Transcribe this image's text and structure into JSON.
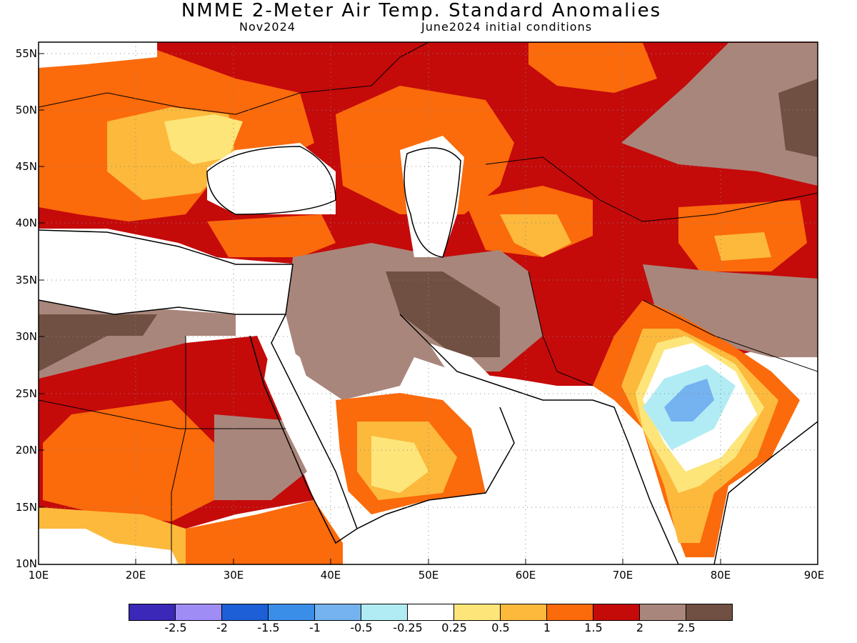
{
  "title": "NMME 2-Meter Air Temp. Standard Anomalies",
  "valid_month": "Nov2024",
  "initial_conditions": "June2024 initial conditions",
  "colors": {
    "land_outline": "#000000",
    "grid": "#888888"
  },
  "map": {
    "lat_labels": [
      "55N",
      "50N",
      "45N",
      "40N",
      "35N",
      "30N",
      "25N",
      "20N",
      "15N",
      "10N"
    ],
    "lon_labels": [
      "10E",
      "20E",
      "30E",
      "40E",
      "50E",
      "60E",
      "70E",
      "80E",
      "90E"
    ],
    "lat_range": [
      10,
      56
    ],
    "lon_range": [
      10,
      90
    ]
  },
  "colorbar": {
    "colors": [
      "#3b27b8",
      "#a08cf5",
      "#1d5fd7",
      "#3b8ee8",
      "#74b2f0",
      "#b1ecf4",
      "#ffffff",
      "#fde57a",
      "#fcb93c",
      "#fb6a0b",
      "#c50a0a",
      "#a9867b",
      "#705043"
    ],
    "labels": [
      "-2.5",
      "-2",
      "-1.5",
      "-1",
      "-0.5",
      "-0.25",
      "0.25",
      "0.5",
      "1",
      "1.5",
      "2",
      "2.5"
    ]
  }
}
